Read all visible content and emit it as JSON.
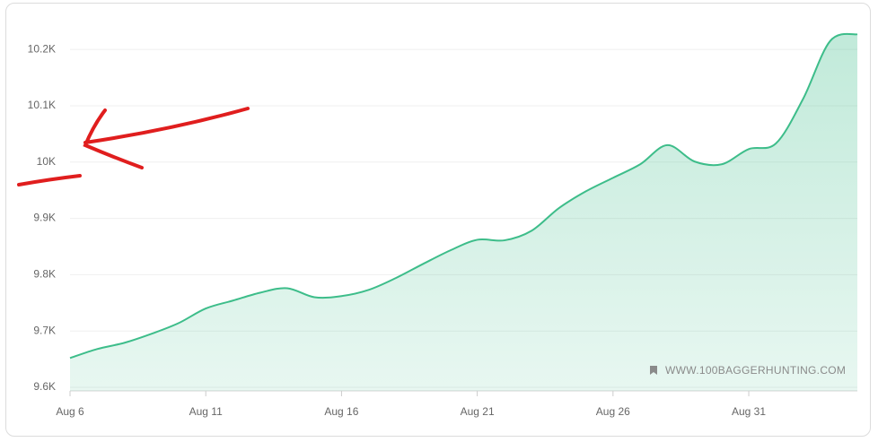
{
  "chart_data": {
    "type": "area",
    "categories": [
      "Aug 6",
      null,
      null,
      null,
      null,
      "Aug 11",
      null,
      null,
      null,
      null,
      "Aug 16",
      null,
      null,
      null,
      null,
      "Aug 21",
      null,
      null,
      null,
      null,
      "Aug 26",
      null,
      null,
      null,
      null,
      "Aug 31",
      null,
      null,
      null,
      null
    ],
    "values": [
      9652,
      9668,
      9679,
      9695,
      9714,
      9740,
      9754,
      9768,
      9776,
      9760,
      9762,
      9773,
      9794,
      9819,
      9843,
      9862,
      9861,
      9878,
      9918,
      9948,
      9972,
      9996,
      10030,
      10001,
      9996,
      10023,
      10033,
      10112,
      10215,
      10227
    ],
    "color": "#3dbd8a",
    "ylim": [
      9600,
      10240
    ],
    "yticks": [
      {
        "value": 9600,
        "label": "9.6K"
      },
      {
        "value": 9700,
        "label": "9.7K"
      },
      {
        "value": 9800,
        "label": "9.8K"
      },
      {
        "value": 9900,
        "label": "9.9K"
      },
      {
        "value": 10000,
        "label": "10K"
      },
      {
        "value": 10100,
        "label": "10.1K"
      },
      {
        "value": 10200,
        "label": "10.2K"
      }
    ],
    "grid": true,
    "watermark": "WWW.100BAGGERHUNTING.COM"
  }
}
